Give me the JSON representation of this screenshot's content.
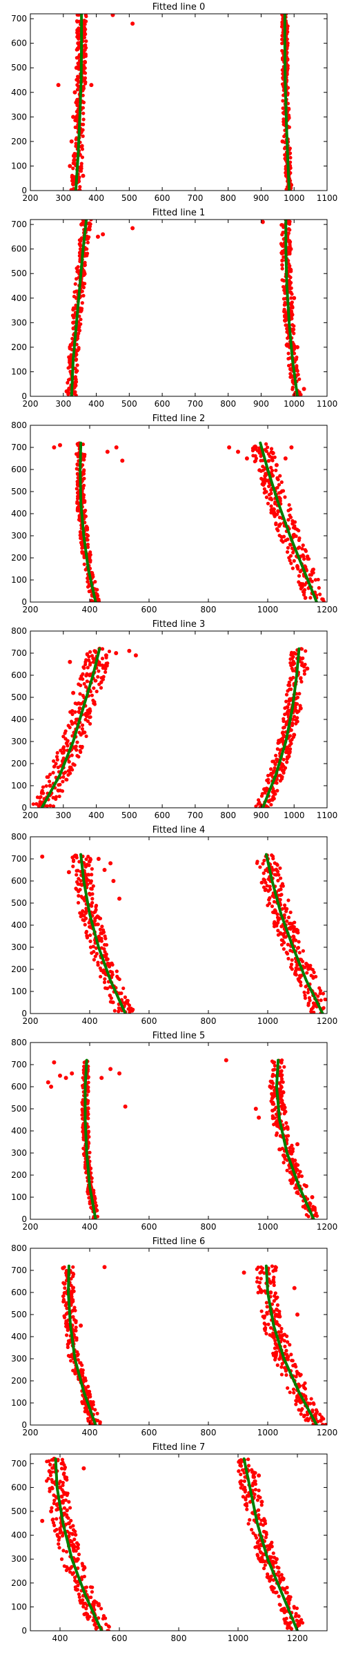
{
  "chart_data": [
    {
      "type": "scatter",
      "title": "Fitted line 0",
      "xlim": [
        200,
        1100
      ],
      "ylim": [
        0,
        720
      ],
      "xticks": [
        200,
        300,
        400,
        500,
        600,
        700,
        800,
        900,
        1000,
        1100
      ],
      "yticks": [
        0,
        100,
        200,
        300,
        400,
        500,
        600,
        700
      ],
      "points": [
        [
          330,
          40
        ],
        [
          350,
          720
        ],
        [
          345,
          600
        ],
        [
          340,
          500
        ],
        [
          335,
          400
        ],
        [
          330,
          300
        ],
        [
          325,
          200
        ],
        [
          320,
          100
        ],
        [
          360,
          60
        ],
        [
          285,
          430
        ],
        [
          350,
          650
        ],
        [
          385,
          430
        ],
        [
          450,
          715
        ],
        [
          510,
          680
        ],
        [
          975,
          720
        ],
        [
          980,
          600
        ],
        [
          975,
          450
        ],
        [
          970,
          420
        ],
        [
          965,
          200
        ],
        [
          985,
          150
        ],
        [
          990,
          20
        ]
      ],
      "clusters": [
        [
          300,
          0,
          380,
          720
        ],
        [
          960,
          0,
          1010,
          720
        ]
      ],
      "fits": [
        {
          "x": [
            338,
            345,
            350,
            354,
            355,
            355
          ],
          "y": [
            0,
            150,
            300,
            450,
            600,
            720
          ]
        },
        {
          "x": [
            985,
            980,
            976,
            973,
            972,
            972
          ],
          "y": [
            0,
            150,
            300,
            450,
            600,
            720
          ]
        }
      ]
    },
    {
      "type": "scatter",
      "title": "Fitted line 1",
      "xlim": [
        200,
        1100
      ],
      "ylim": [
        0,
        720
      ],
      "xticks": [
        200,
        300,
        400,
        500,
        600,
        700,
        800,
        900,
        1000,
        1100
      ],
      "yticks": [
        0,
        100,
        200,
        300,
        400,
        500,
        600,
        700
      ],
      "points": [
        [
          360,
          720
        ],
        [
          350,
          620
        ],
        [
          340,
          400
        ],
        [
          330,
          300
        ],
        [
          320,
          150
        ],
        [
          310,
          20
        ],
        [
          355,
          700
        ],
        [
          405,
          650
        ],
        [
          420,
          660
        ],
        [
          510,
          685
        ],
        [
          905,
          710
        ],
        [
          975,
          720
        ],
        [
          990,
          600
        ],
        [
          1000,
          400
        ],
        [
          1010,
          200
        ],
        [
          1030,
          30
        ]
      ],
      "clusters": [
        [
          300,
          0,
          380,
          720
        ],
        [
          960,
          0,
          1040,
          720
        ]
      ],
      "fits": [
        {
          "x": [
            325,
            330,
            340,
            350,
            360,
            370
          ],
          "y": [
            0,
            150,
            300,
            450,
            600,
            720
          ]
        },
        {
          "x": [
            1010,
            995,
            985,
            978,
            975,
            975
          ],
          "y": [
            0,
            150,
            300,
            450,
            600,
            720
          ]
        }
      ]
    },
    {
      "type": "scatter",
      "title": "Fitted line 2",
      "xlim": [
        200,
        1200
      ],
      "ylim": [
        0,
        800
      ],
      "xticks": [
        200,
        400,
        600,
        800,
        1000,
        1200
      ],
      "yticks": [
        0,
        100,
        200,
        300,
        400,
        500,
        600,
        700,
        800
      ],
      "points": [
        [
          280,
          700
        ],
        [
          300,
          710
        ],
        [
          460,
          680
        ],
        [
          490,
          700
        ],
        [
          510,
          640
        ],
        [
          870,
          700
        ],
        [
          900,
          680
        ],
        [
          930,
          650
        ],
        [
          960,
          700
        ],
        [
          980,
          690
        ],
        [
          1030,
          620
        ],
        [
          1060,
          650
        ],
        [
          1080,
          700
        ],
        [
          1020,
          420
        ],
        [
          1050,
          380
        ],
        [
          1100,
          160
        ],
        [
          1150,
          40
        ]
      ],
      "clusters": [
        [
          350,
          0,
          430,
          720
        ],
        [
          980,
          0,
          1180,
          720
        ]
      ],
      "fits": [
        {
          "x": [
            420,
            395,
            380,
            370,
            368,
            370
          ],
          "y": [
            0,
            150,
            300,
            450,
            600,
            720
          ]
        },
        {
          "x": [
            1165,
            1120,
            1075,
            1035,
            1000,
            975
          ],
          "y": [
            0,
            150,
            300,
            450,
            600,
            720
          ]
        }
      ]
    },
    {
      "type": "scatter",
      "title": "Fitted line 3",
      "xlim": [
        200,
        1100
      ],
      "ylim": [
        0,
        800
      ],
      "xticks": [
        200,
        300,
        400,
        500,
        600,
        700,
        800,
        900,
        1000,
        1100
      ],
      "yticks": [
        0,
        100,
        200,
        300,
        400,
        500,
        600,
        700,
        800
      ],
      "points": [
        [
          230,
          20
        ],
        [
          260,
          100
        ],
        [
          300,
          250
        ],
        [
          350,
          450
        ],
        [
          380,
          600
        ],
        [
          410,
          720
        ],
        [
          320,
          660
        ],
        [
          330,
          520
        ],
        [
          430,
          690
        ],
        [
          460,
          700
        ],
        [
          500,
          710
        ],
        [
          520,
          690
        ],
        [
          1000,
          700
        ],
        [
          1010,
          600
        ],
        [
          1040,
          630
        ],
        [
          1020,
          450
        ],
        [
          1000,
          330
        ],
        [
          960,
          230
        ],
        [
          930,
          150
        ],
        [
          920,
          80
        ]
      ],
      "clusters": [
        [
          220,
          0,
          420,
          720
        ],
        [
          910,
          0,
          1040,
          720
        ]
      ],
      "fits": [
        {
          "x": [
            235,
            290,
            330,
            360,
            390,
            410
          ],
          "y": [
            0,
            150,
            300,
            450,
            600,
            720
          ]
        },
        {
          "x": [
            905,
            945,
            975,
            995,
            1008,
            1015
          ],
          "y": [
            0,
            150,
            300,
            450,
            600,
            720
          ]
        }
      ]
    },
    {
      "type": "scatter",
      "title": "Fitted line 4",
      "xlim": [
        200,
        1200
      ],
      "ylim": [
        0,
        800
      ],
      "xticks": [
        200,
        400,
        600,
        800,
        1000,
        1200
      ],
      "yticks": [
        0,
        100,
        200,
        300,
        400,
        500,
        600,
        700,
        800
      ],
      "points": [
        [
          240,
          710
        ],
        [
          330,
          640
        ],
        [
          430,
          700
        ],
        [
          450,
          650
        ],
        [
          470,
          680
        ],
        [
          480,
          600
        ],
        [
          500,
          520
        ],
        [
          1000,
          700
        ],
        [
          1010,
          600
        ],
        [
          1040,
          500
        ],
        [
          1060,
          400
        ],
        [
          1100,
          220
        ],
        [
          1150,
          100
        ],
        [
          1180,
          20
        ]
      ],
      "clusters": [
        [
          360,
          0,
          540,
          720
        ],
        [
          990,
          0,
          1200,
          720
        ]
      ],
      "fits": [
        {
          "x": [
            520,
            470,
            430,
            400,
            380,
            370
          ],
          "y": [
            0,
            150,
            300,
            450,
            600,
            720
          ]
        },
        {
          "x": [
            1185,
            1130,
            1085,
            1045,
            1015,
            995
          ],
          "y": [
            0,
            150,
            300,
            450,
            600,
            720
          ]
        }
      ]
    },
    {
      "type": "scatter",
      "title": "Fitted line 5",
      "xlim": [
        200,
        1200
      ],
      "ylim": [
        0,
        800
      ],
      "xticks": [
        200,
        400,
        600,
        800,
        1000,
        1200
      ],
      "yticks": [
        0,
        100,
        200,
        300,
        400,
        500,
        600,
        700,
        800
      ],
      "points": [
        [
          260,
          620
        ],
        [
          270,
          600
        ],
        [
          280,
          710
        ],
        [
          300,
          650
        ],
        [
          320,
          640
        ],
        [
          340,
          660
        ],
        [
          440,
          640
        ],
        [
          470,
          680
        ],
        [
          500,
          660
        ],
        [
          520,
          510
        ],
        [
          860,
          720
        ],
        [
          960,
          500
        ],
        [
          970,
          460
        ],
        [
          1040,
          560
        ],
        [
          1050,
          500
        ],
        [
          1100,
          340
        ],
        [
          1130,
          150
        ],
        [
          1150,
          100
        ]
      ],
      "clusters": [
        [
          370,
          0,
          430,
          720
        ],
        [
          1030,
          0,
          1160,
          720
        ]
      ],
      "fits": [
        {
          "x": [
            420,
            400,
            390,
            385,
            385,
            390
          ],
          "y": [
            0,
            150,
            300,
            450,
            600,
            720
          ]
        },
        {
          "x": [
            1155,
            1105,
            1065,
            1040,
            1030,
            1035
          ],
          "y": [
            0,
            150,
            300,
            450,
            600,
            720
          ]
        }
      ]
    },
    {
      "type": "scatter",
      "title": "Fitted line 6",
      "xlim": [
        200,
        1200
      ],
      "ylim": [
        0,
        800
      ],
      "xticks": [
        200,
        400,
        600,
        800,
        1000,
        1200
      ],
      "yticks": [
        0,
        100,
        200,
        300,
        400,
        500,
        600,
        700,
        800
      ],
      "points": [
        [
          310,
          710
        ],
        [
          330,
          600
        ],
        [
          340,
          450
        ],
        [
          350,
          300
        ],
        [
          380,
          200
        ],
        [
          400,
          100
        ],
        [
          420,
          20
        ],
        [
          450,
          715
        ],
        [
          370,
          450
        ],
        [
          920,
          690
        ],
        [
          1000,
          700
        ],
        [
          1010,
          600
        ],
        [
          1090,
          620
        ],
        [
          1100,
          500
        ],
        [
          1030,
          400
        ],
        [
          1060,
          300
        ],
        [
          1090,
          200
        ],
        [
          1100,
          130
        ],
        [
          1160,
          40
        ]
      ],
      "clusters": [
        [
          310,
          0,
          420,
          720
        ],
        [
          990,
          0,
          1180,
          720
        ]
      ],
      "fits": [
        {
          "x": [
            420,
            380,
            350,
            335,
            328,
            330
          ],
          "y": [
            0,
            150,
            300,
            450,
            600,
            720
          ]
        },
        {
          "x": [
            1165,
            1105,
            1055,
            1020,
            1000,
            995
          ],
          "y": [
            0,
            150,
            300,
            450,
            600,
            720
          ]
        }
      ]
    },
    {
      "type": "scatter",
      "title": "Fitted line 7",
      "xlim": [
        300,
        1300
      ],
      "ylim": [
        0,
        740
      ],
      "xticks": [
        400,
        600,
        800,
        1000,
        1200
      ],
      "yticks": [
        0,
        100,
        200,
        300,
        400,
        500,
        600,
        700
      ],
      "points": [
        [
          380,
          720
        ],
        [
          400,
          600
        ],
        [
          430,
          450
        ],
        [
          460,
          300
        ],
        [
          490,
          150
        ],
        [
          520,
          30
        ],
        [
          340,
          460
        ],
        [
          370,
          500
        ],
        [
          480,
          680
        ],
        [
          1070,
          650
        ],
        [
          1080,
          540
        ],
        [
          1090,
          460
        ],
        [
          1110,
          360
        ],
        [
          1130,
          300
        ],
        [
          1150,
          220
        ],
        [
          1170,
          120
        ],
        [
          1200,
          20
        ]
      ],
      "clusters": [
        [
          370,
          0,
          560,
          720
        ],
        [
          1050,
          0,
          1220,
          720
        ]
      ],
      "fits": [
        {
          "x": [
            540,
            485,
            440,
            410,
            390,
            385
          ],
          "y": [
            0,
            150,
            300,
            450,
            600,
            720
          ]
        },
        {
          "x": [
            1200,
            1150,
            1100,
            1065,
            1040,
            1020
          ],
          "y": [
            0,
            150,
            300,
            450,
            600,
            720
          ]
        }
      ]
    }
  ]
}
